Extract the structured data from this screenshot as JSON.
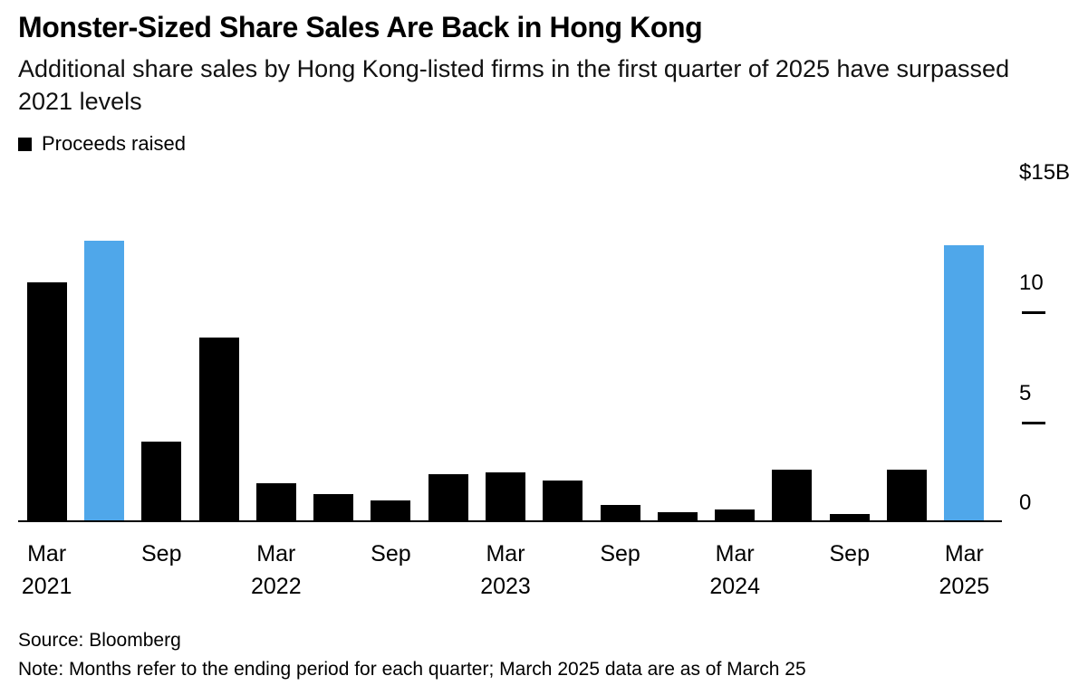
{
  "header": {
    "title": "Monster-Sized Share Sales Are Back in Hong Kong",
    "subtitle": "Additional share sales by Hong Kong-listed firms in the first quarter of 2025 have surpassed 2021 levels"
  },
  "legend": {
    "label": "Proceeds raised"
  },
  "footer": {
    "source": "Source: Bloomberg",
    "note": "Note: Months refer to the ending period for each quarter; March 2025 data are as of March 25"
  },
  "colors": {
    "bar": "#000000",
    "highlight": "#4fa7ea",
    "axis": "#000000",
    "background": "#ffffff"
  },
  "chart_data": {
    "type": "bar",
    "title": "Monster-Sized Share Sales Are Back in Hong Kong",
    "subtitle": "Additional share sales by Hong Kong-listed firms in the first quarter of 2025 have surpassed 2021 levels",
    "series_name": "Proceeds raised",
    "unit": "USD billions",
    "xlabel": "",
    "ylabel": "Proceeds raised ($B)",
    "ylim": [
      0,
      15
    ],
    "grid": false,
    "legend_position": "top-left",
    "categories": [
      "Mar 2021",
      "Jun 2021",
      "Sep 2021",
      "Dec 2021",
      "Mar 2022",
      "Jun 2022",
      "Sep 2022",
      "Dec 2022",
      "Mar 2023",
      "Jun 2023",
      "Sep 2023",
      "Dec 2023",
      "Mar 2024",
      "Jun 2024",
      "Sep 2024",
      "Dec 2024",
      "Mar 2025"
    ],
    "values": [
      10.8,
      12.7,
      3.6,
      8.3,
      1.7,
      1.2,
      0.9,
      2.1,
      2.2,
      1.8,
      0.7,
      0.4,
      0.5,
      2.3,
      0.3,
      2.3,
      12.5
    ],
    "highlight_indices": [
      1,
      16
    ],
    "yticks": [
      {
        "value": 15,
        "label": "$15B",
        "dash": false
      },
      {
        "value": 10,
        "label": "10",
        "dash": true
      },
      {
        "value": 5,
        "label": "5",
        "dash": true
      },
      {
        "value": 0,
        "label": "0",
        "dash": false
      }
    ],
    "x_tick_labels": [
      {
        "index": 0,
        "line1": "Mar",
        "line2": "2021"
      },
      {
        "index": 2,
        "line1": "Sep",
        "line2": ""
      },
      {
        "index": 4,
        "line1": "Mar",
        "line2": "2022"
      },
      {
        "index": 6,
        "line1": "Sep",
        "line2": ""
      },
      {
        "index": 8,
        "line1": "Mar",
        "line2": "2023"
      },
      {
        "index": 10,
        "line1": "Sep",
        "line2": ""
      },
      {
        "index": 12,
        "line1": "Mar",
        "line2": "2024"
      },
      {
        "index": 14,
        "line1": "Sep",
        "line2": ""
      },
      {
        "index": 16,
        "line1": "Mar",
        "line2": "2025"
      }
    ]
  }
}
